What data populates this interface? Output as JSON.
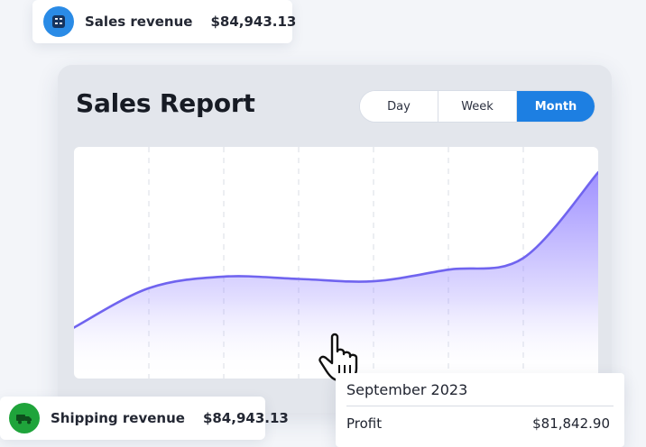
{
  "summary_pills": {
    "sales": {
      "icon": "calculator-icon",
      "label": "Sales revenue",
      "value": "$84,943.13",
      "icon_color": "#2a8be6"
    },
    "shipping": {
      "icon": "truck-icon",
      "label": "Shipping revenue",
      "value": "$84,943.13",
      "icon_color": "#1fa43b"
    }
  },
  "report": {
    "title": "Sales Report",
    "period_buttons": [
      {
        "label": "Day",
        "selected": false
      },
      {
        "label": "Week",
        "selected": false
      },
      {
        "label": "Month",
        "selected": true
      }
    ]
  },
  "tooltip": {
    "title": "September 2023",
    "label": "Profit",
    "value": "$81,842.90"
  },
  "colors": {
    "accent": "#1d7fe2",
    "line": "#7064ef",
    "area_top": "#9b8cff",
    "card_background": "#e3e6ec"
  },
  "chart_data": {
    "type": "area",
    "x": [
      0,
      1,
      2,
      3,
      4,
      5,
      6,
      7
    ],
    "values": [
      0.22,
      0.39,
      0.44,
      0.43,
      0.42,
      0.47,
      0.52,
      0.89
    ],
    "grid": "vertical dashed lines",
    "axis_labels_visible": false
  }
}
